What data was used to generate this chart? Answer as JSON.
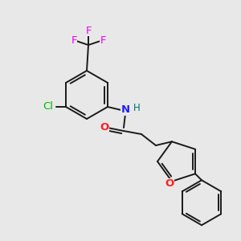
{
  "background_color": "#e8e8e8",
  "bond_color": "#1a1a1a",
  "bond_width": 1.4,
  "atom_colors": {
    "N": "#2020ff",
    "O": "#ff2020",
    "Cl": "#00bb00",
    "F": "#ee00ee",
    "H": "#007070"
  },
  "font_size": 9.5,
  "font_size_h": 8.5
}
